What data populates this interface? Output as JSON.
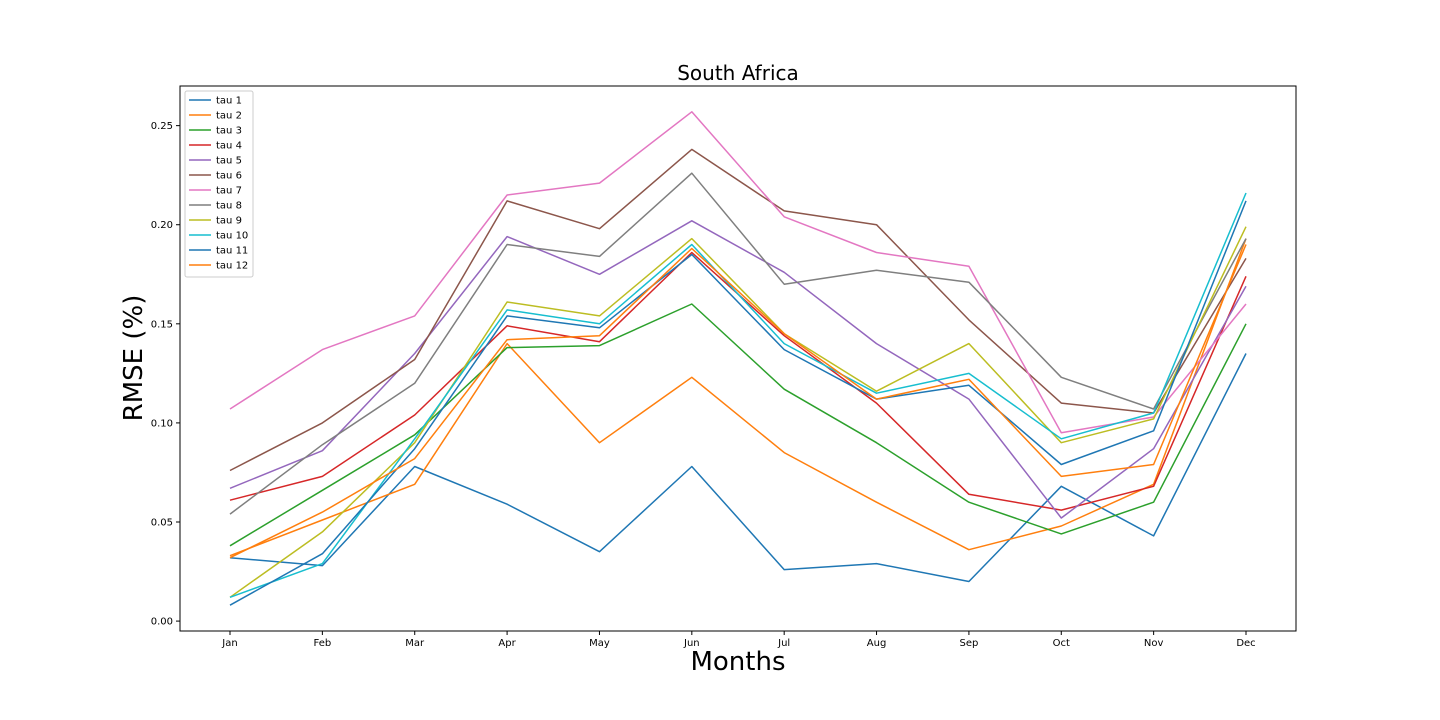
{
  "chart_data": {
    "type": "line",
    "title": "South Africa",
    "xlabel": "Months",
    "ylabel": "RMSE (%)",
    "ylim": [
      -0.005,
      0.27
    ],
    "yticks": [
      0.0,
      0.05,
      0.1,
      0.15,
      0.2,
      0.25
    ],
    "ytick_labels": [
      "0.00",
      "0.05",
      "0.10",
      "0.15",
      "0.20",
      "0.25"
    ],
    "categories": [
      "Jan",
      "Feb",
      "Mar",
      "Apr",
      "May",
      "Jun",
      "Jul",
      "Aug",
      "Sep",
      "Oct",
      "Nov",
      "Dec"
    ],
    "grid": false,
    "legend_position": "top-left",
    "series": [
      {
        "name": "tau 1",
        "color": "#1f77b4",
        "values": [
          0.032,
          0.028,
          0.078,
          0.059,
          0.035,
          0.078,
          0.026,
          0.029,
          0.02,
          0.068,
          0.043,
          0.135
        ]
      },
      {
        "name": "tau 2",
        "color": "#ff7f0e",
        "values": [
          0.033,
          0.051,
          0.069,
          0.14,
          0.09,
          0.123,
          0.085,
          0.06,
          0.036,
          0.048,
          0.069,
          0.193
        ]
      },
      {
        "name": "tau 3",
        "color": "#2ca02c",
        "values": [
          0.038,
          0.066,
          0.094,
          0.138,
          0.139,
          0.16,
          0.117,
          0.09,
          0.06,
          0.044,
          0.06,
          0.15
        ]
      },
      {
        "name": "tau 4",
        "color": "#d62728",
        "values": [
          0.061,
          0.073,
          0.104,
          0.149,
          0.141,
          0.186,
          0.144,
          0.11,
          0.064,
          0.056,
          0.068,
          0.174
        ]
      },
      {
        "name": "tau 5",
        "color": "#9467bd",
        "values": [
          0.067,
          0.086,
          0.135,
          0.194,
          0.175,
          0.202,
          0.176,
          0.14,
          0.112,
          0.052,
          0.087,
          0.169
        ]
      },
      {
        "name": "tau 6",
        "color": "#8c564b",
        "values": [
          0.076,
          0.1,
          0.132,
          0.212,
          0.198,
          0.238,
          0.207,
          0.2,
          0.152,
          0.11,
          0.105,
          0.183
        ]
      },
      {
        "name": "tau 7",
        "color": "#e377c2",
        "values": [
          0.107,
          0.137,
          0.154,
          0.215,
          0.221,
          0.257,
          0.204,
          0.186,
          0.179,
          0.095,
          0.103,
          0.16
        ]
      },
      {
        "name": "tau 8",
        "color": "#7f7f7f",
        "values": [
          0.054,
          0.089,
          0.12,
          0.19,
          0.184,
          0.226,
          0.17,
          0.177,
          0.171,
          0.123,
          0.107,
          0.193
        ]
      },
      {
        "name": "tau 9",
        "color": "#bcbd22",
        "values": [
          0.012,
          0.045,
          0.09,
          0.161,
          0.154,
          0.193,
          0.145,
          0.116,
          0.14,
          0.09,
          0.102,
          0.199
        ]
      },
      {
        "name": "tau 10",
        "color": "#17becf",
        "values": [
          0.012,
          0.029,
          0.092,
          0.157,
          0.15,
          0.19,
          0.14,
          0.115,
          0.125,
          0.092,
          0.105,
          0.216
        ]
      },
      {
        "name": "tau 11",
        "color": "#1f77b4",
        "values": [
          0.008,
          0.034,
          0.087,
          0.154,
          0.148,
          0.185,
          0.137,
          0.112,
          0.119,
          0.079,
          0.096,
          0.212
        ]
      },
      {
        "name": "tau 12",
        "color": "#ff7f0e",
        "values": [
          0.032,
          0.055,
          0.082,
          0.142,
          0.144,
          0.188,
          0.145,
          0.112,
          0.122,
          0.073,
          0.079,
          0.19
        ]
      }
    ]
  }
}
